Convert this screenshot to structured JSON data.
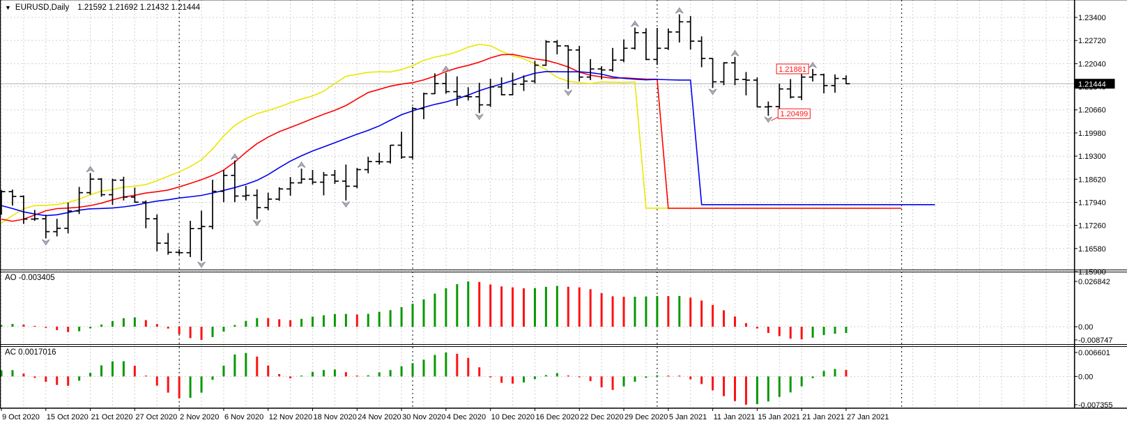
{
  "title": {
    "dropdown_arrow": "▼",
    "symbol_period": "EURUSD,Daily",
    "quotes": "1.21592 1.21692 1.21432 1.21444"
  },
  "price_axis": {
    "labels": [
      "1.23400",
      "1.22720",
      "1.22040",
      "1.21340",
      "1.20660",
      "1.19980",
      "1.19300",
      "1.18620",
      "1.17940",
      "1.17260",
      "1.16580",
      "1.15900"
    ],
    "current_tag": "1.21444"
  },
  "ao_panel": {
    "label": "AO -0.003405",
    "max_label": "0.026842",
    "zero_label": "0.00",
    "min_label": "-0.008747"
  },
  "ac_panel": {
    "label": "AC 0.0017016",
    "max_label": "0.006601",
    "zero_label": "0.00",
    "min_label": "-0.007355"
  },
  "colors": {
    "bar": "#000000",
    "up_histogram": "#089800",
    "down_histogram": "#fd1111",
    "alligator_jaw": "#0000f0",
    "alligator_teeth": "#ff0000",
    "alligator_lips": "#e8e800",
    "fractal": "#aeaebc",
    "fractal_edge": "#80808f",
    "grid": "#cfcfcf",
    "month_separator": "#000000",
    "bid_line": "#b8b8b8",
    "callout": "#ff1414",
    "tag_bg": "#000000",
    "tag_text": "#ffffff"
  },
  "chart_data": {
    "type": "ohlc-bar",
    "symbol": "EURUSD",
    "timeframe": "Daily",
    "title": "EURUSD,Daily 1.21592 1.21692 1.21432 1.21444",
    "ylim": [
      1.159,
      1.234
    ],
    "grid": true,
    "bid": 1.21444,
    "dates": [
      "9 Oct",
      "12 Oct",
      "13 Oct",
      "14 Oct",
      "15 Oct",
      "16 Oct",
      "19 Oct",
      "20 Oct",
      "21 Oct",
      "22 Oct",
      "23 Oct",
      "26 Oct",
      "27 Oct",
      "28 Oct",
      "29 Oct",
      "30 Oct",
      "2 Nov",
      "3 Nov",
      "4 Nov",
      "5 Nov",
      "6 Nov",
      "9 Nov",
      "10 Nov",
      "11 Nov",
      "12 Nov",
      "13 Nov",
      "16 Nov",
      "17 Nov",
      "18 Nov",
      "19 Nov",
      "20 Nov",
      "23 Nov",
      "24 Nov",
      "25 Nov",
      "26 Nov",
      "27 Nov",
      "30 Nov",
      "1 Dec",
      "2 Dec",
      "3 Dec",
      "4 Dec",
      "7 Dec",
      "8 Dec",
      "9 Dec",
      "10 Dec",
      "11 Dec",
      "14 Dec",
      "15 Dec",
      "16 Dec",
      "17 Dec",
      "18 Dec",
      "21 Dec",
      "22 Dec",
      "23 Dec",
      "24 Dec",
      "28 Dec",
      "29 Dec",
      "30 Dec",
      "31 Dec",
      "4 Jan",
      "5 Jan",
      "6 Jan",
      "7 Jan",
      "8 Jan",
      "11 Jan",
      "12 Jan",
      "13 Jan",
      "14 Jan",
      "15 Jan",
      "18 Jan",
      "19 Jan",
      "20 Jan",
      "21 Jan",
      "22 Jan",
      "25 Jan",
      "26 Jan",
      "27 Jan"
    ],
    "open": [
      1.1762,
      1.1826,
      1.1812,
      1.1745,
      1.1746,
      1.1708,
      1.1718,
      1.1769,
      1.1823,
      1.1863,
      1.1817,
      1.186,
      1.181,
      1.1795,
      1.1746,
      1.1674,
      1.1647,
      1.1646,
      1.1717,
      1.1723,
      1.1827,
      1.1874,
      1.1813,
      1.1815,
      1.1779,
      1.1804,
      1.1834,
      1.1852,
      1.1863,
      1.1854,
      1.1875,
      1.1857,
      1.1842,
      1.1891,
      1.1915,
      1.1914,
      1.1963,
      1.1928,
      1.2071,
      1.2115,
      1.2145,
      1.2121,
      1.2107,
      1.2106,
      1.2082,
      1.2135,
      1.2112,
      1.2143,
      1.2152,
      1.2199,
      1.2268,
      1.2256,
      1.2244,
      1.2164,
      1.2188,
      1.2185,
      1.2214,
      1.2249,
      1.2295,
      1.2216,
      1.2249,
      1.2297,
      1.2327,
      1.227,
      1.2219,
      1.215,
      1.2206,
      1.2157,
      1.2155,
      1.2076,
      1.2077,
      1.2129,
      1.2105,
      1.2164,
      1.2171,
      1.2139,
      1.21592
    ],
    "high": [
      1.1831,
      1.1832,
      1.1815,
      1.1772,
      1.1758,
      1.1746,
      1.1794,
      1.184,
      1.1881,
      1.1866,
      1.1864,
      1.187,
      1.1838,
      1.18,
      1.1759,
      1.1704,
      1.1656,
      1.174,
      1.177,
      1.1861,
      1.189,
      1.1918,
      1.1843,
      1.1833,
      1.1823,
      1.1839,
      1.1869,
      1.1894,
      1.189,
      1.1884,
      1.189,
      1.1906,
      1.1896,
      1.1929,
      1.1941,
      1.1964,
      1.2003,
      1.2076,
      1.2118,
      1.2175,
      1.2177,
      1.2166,
      1.2134,
      1.2147,
      1.2159,
      1.2163,
      1.2177,
      1.2169,
      1.2212,
      1.2273,
      1.2273,
      1.2258,
      1.2256,
      1.2217,
      1.2196,
      1.225,
      1.2275,
      1.231,
      1.2308,
      1.2309,
      1.2307,
      1.2349,
      1.2344,
      1.2284,
      1.222,
      1.2208,
      1.2223,
      1.2179,
      1.2163,
      1.2092,
      1.2145,
      1.2158,
      1.2173,
      1.21881,
      1.2174,
      1.2172,
      1.21692
    ],
    "low": [
      1.1758,
      1.1785,
      1.1731,
      1.174,
      1.1688,
      1.1694,
      1.1703,
      1.176,
      1.1817,
      1.1811,
      1.1787,
      1.18,
      1.1793,
      1.1718,
      1.165,
      1.164,
      1.164,
      1.1633,
      1.1622,
      1.1715,
      1.1795,
      1.1795,
      1.18,
      1.1745,
      1.1771,
      1.1799,
      1.1814,
      1.185,
      1.1847,
      1.1815,
      1.1849,
      1.18,
      1.1836,
      1.188,
      1.1906,
      1.1909,
      1.1923,
      1.1923,
      1.204,
      1.2114,
      1.2115,
      1.2079,
      1.2095,
      1.2058,
      1.2076,
      1.211,
      1.211,
      1.2123,
      1.2145,
      1.2197,
      1.2231,
      1.2129,
      1.2151,
      1.2155,
      1.2157,
      1.218,
      1.2208,
      1.2245,
      1.2214,
      1.22,
      1.2244,
      1.2266,
      1.2245,
      1.2193,
      1.2132,
      1.214,
      1.214,
      1.211,
      1.2075,
      1.20499,
      1.2066,
      1.2101,
      1.2096,
      1.2151,
      1.2116,
      1.2118,
      1.21432
    ],
    "close": [
      1.1826,
      1.1812,
      1.1745,
      1.1746,
      1.1708,
      1.1718,
      1.1769,
      1.1823,
      1.1863,
      1.1817,
      1.186,
      1.181,
      1.1795,
      1.1746,
      1.1674,
      1.1647,
      1.1646,
      1.1717,
      1.1723,
      1.1827,
      1.1874,
      1.1813,
      1.1815,
      1.1779,
      1.1804,
      1.1834,
      1.1852,
      1.1863,
      1.1854,
      1.1875,
      1.1857,
      1.1842,
      1.1891,
      1.1915,
      1.1914,
      1.1963,
      1.1928,
      1.2071,
      1.2115,
      1.2145,
      1.2121,
      1.2107,
      1.2106,
      1.2082,
      1.2135,
      1.2112,
      1.2143,
      1.2152,
      1.2199,
      1.2268,
      1.2256,
      1.2244,
      1.2164,
      1.2188,
      1.2185,
      1.2214,
      1.2249,
      1.2295,
      1.2216,
      1.2249,
      1.2297,
      1.2327,
      1.227,
      1.2219,
      1.215,
      1.2206,
      1.2157,
      1.2155,
      1.2076,
      1.2077,
      1.2129,
      1.2105,
      1.2164,
      1.2171,
      1.2139,
      1.216,
      1.21444
    ],
    "prior_median_prices": [
      1.187,
      1.186,
      1.1855,
      1.1865,
      1.185,
      1.182,
      1.179,
      1.176,
      1.172,
      1.169,
      1.167,
      1.17,
      1.173,
      1.176,
      1.178,
      1.177,
      1.175,
      1.174,
      1.177,
      1.179,
      1.18,
      1.1785
    ],
    "x_axis": {
      "tick_bars": [
        0,
        4,
        8,
        12,
        16,
        20,
        24,
        28,
        32,
        36,
        40,
        44,
        48,
        52,
        56,
        60,
        64,
        68,
        72,
        76
      ],
      "tick_labels": [
        "9 Oct 2020",
        "15 Oct 2020",
        "21 Oct 2020",
        "27 Oct 2020",
        "2 Nov 2020",
        "6 Nov 2020",
        "12 Nov 2020",
        "18 Nov 2020",
        "24 Nov 2020",
        "30 Nov 2020",
        "4 Dec 2020",
        "10 Dec 2020",
        "16 Dec 2020",
        "22 Dec 2020",
        "29 Dec 2020",
        "5 Jan 2021",
        "11 Jan 2021",
        "15 Jan 2021",
        "21 Jan 2021",
        "27 Jan 2021"
      ],
      "month_separator_bars": [
        16,
        37,
        59,
        81
      ]
    },
    "indicators": {
      "alligator": {
        "jaw": {
          "period": 13,
          "shift": 8,
          "color_key": "alligator_jaw"
        },
        "teeth": {
          "period": 8,
          "shift": 5,
          "color_key": "alligator_teeth"
        },
        "lips": {
          "period": 5,
          "shift": 3,
          "color_key": "alligator_lips"
        }
      },
      "awesome_oscillator": {
        "current": -0.003405,
        "fast": 5,
        "slow": 34,
        "range": [
          -0.008747,
          0.026842
        ]
      },
      "accelerator": {
        "current": 0.0017016,
        "smooth": 5,
        "range": [
          -0.007355,
          0.006601
        ]
      },
      "fractals": {
        "up_bars": [
          8,
          21,
          27,
          40,
          57,
          61,
          66,
          73
        ],
        "down_bars": [
          4,
          18,
          23,
          31,
          43,
          51,
          64,
          69
        ]
      }
    },
    "callouts": [
      {
        "text": "1.21881",
        "bar": 73,
        "anchor": "high",
        "side": "left"
      },
      {
        "text": "1.20499",
        "bar": 69,
        "anchor": "low",
        "side": "right"
      }
    ]
  }
}
